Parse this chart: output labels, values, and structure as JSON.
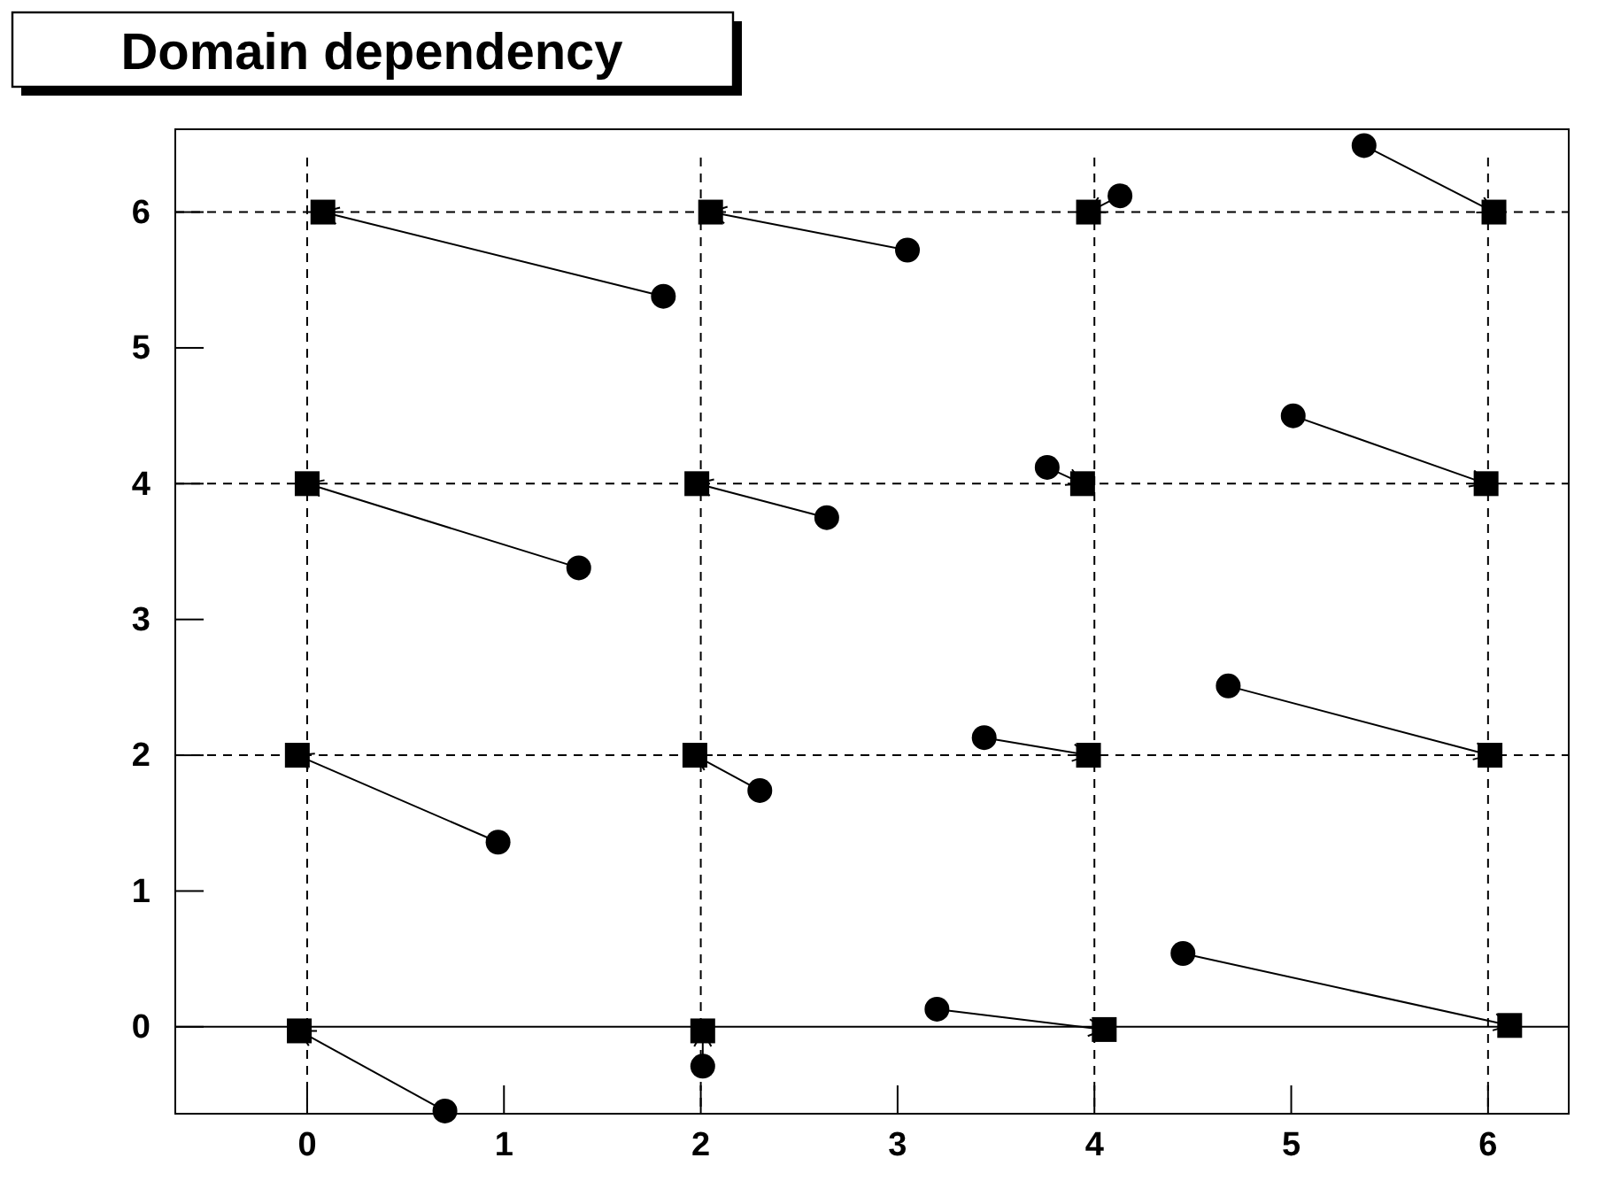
{
  "chart_data": {
    "type": "scatter",
    "title": "Domain dependency",
    "xlim": [
      -0.67,
      6.41
    ],
    "ylim": [
      -0.64,
      6.61
    ],
    "xticks": [
      0,
      1,
      2,
      3,
      4,
      5,
      6
    ],
    "yticks": [
      0,
      1,
      2,
      3,
      4,
      5,
      6
    ],
    "series": [
      {
        "type": "scatter",
        "marker": "circle",
        "color": "#000000",
        "x": [
          1.81,
          3.05,
          1.38,
          2.64,
          4.13,
          5.37,
          3.76,
          5.01,
          0.97,
          2.3,
          0.7,
          2.01,
          3.44,
          4.68,
          3.2,
          4.45
        ],
        "values": [
          5.38,
          5.72,
          3.38,
          3.75,
          6.12,
          6.49,
          4.12,
          4.5,
          1.36,
          1.74,
          -0.62,
          -0.29,
          2.13,
          2.51,
          0.13,
          0.54
        ]
      },
      {
        "type": "scatter",
        "marker": "square",
        "color": "#000000",
        "x": [
          0.08,
          2.05,
          0.0,
          1.98,
          3.97,
          6.03,
          3.94,
          5.99,
          -0.05,
          1.97,
          -0.04,
          2.01,
          3.97,
          6.01,
          4.05,
          6.11
        ],
        "values": [
          6.0,
          6.0,
          4.0,
          4.0,
          6.0,
          6.0,
          4.0,
          4.0,
          2.0,
          2.0,
          -0.03,
          -0.03,
          2.0,
          2.0,
          -0.02,
          0.01
        ]
      }
    ],
    "ref_lines": [
      {
        "axis": "x",
        "value": 0,
        "line_style": "dashed"
      },
      {
        "axis": "x",
        "value": 2,
        "line_style": "dashed"
      },
      {
        "axis": "x",
        "value": 4,
        "line_style": "dashed"
      },
      {
        "axis": "x",
        "value": 6,
        "line_style": "dashed"
      },
      {
        "axis": "y",
        "value": 0,
        "line_style": "solid"
      },
      {
        "axis": "y",
        "value": 2,
        "line_style": "dashed"
      },
      {
        "axis": "y",
        "value": 4,
        "line_style": "dashed"
      },
      {
        "axis": "y",
        "value": 6,
        "line_style": "dashed"
      }
    ]
  }
}
